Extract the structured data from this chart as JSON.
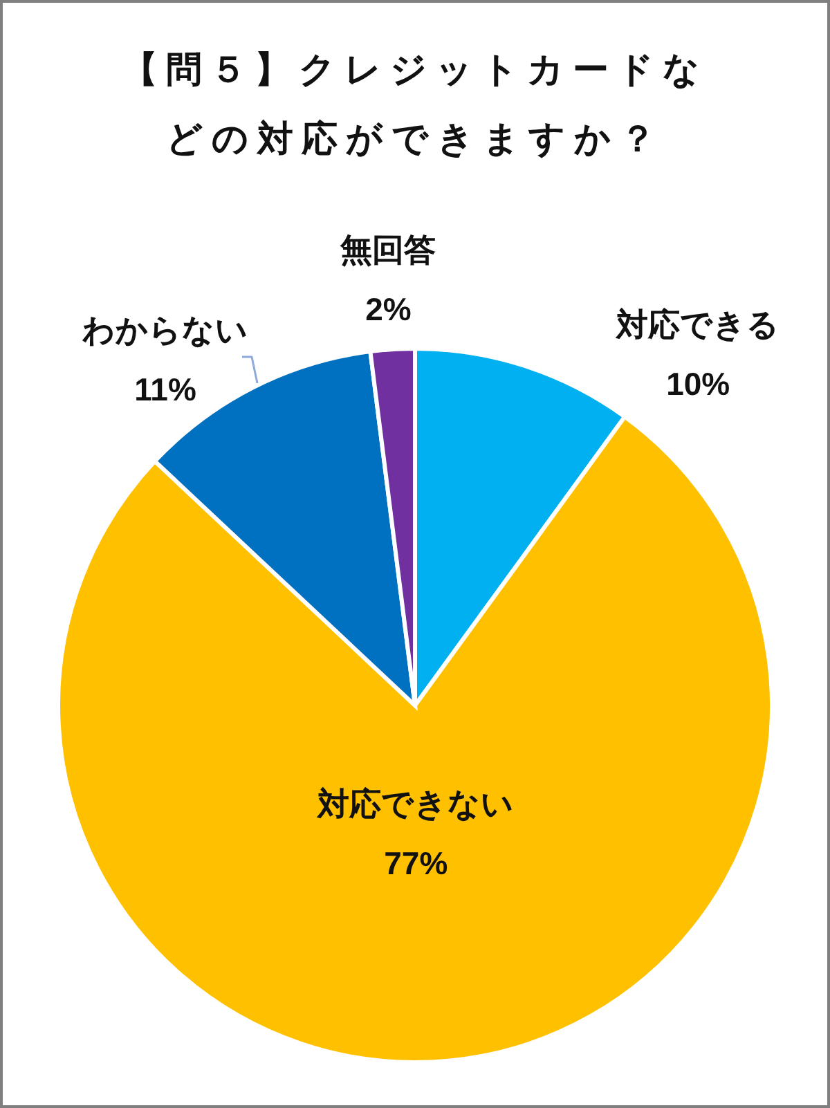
{
  "chart_data": {
    "type": "pie",
    "title": "【問５】クレジットカードなどの対応ができますか？",
    "categories": [
      "対応できる",
      "対応できない",
      "わからない",
      "無回答"
    ],
    "values": [
      10,
      77,
      11,
      2
    ],
    "colors": [
      "#00b0f0",
      "#ffc000",
      "#0070c0",
      "#7030a0"
    ],
    "value_labels": [
      "10%",
      "77%",
      "11%",
      "2%"
    ]
  }
}
